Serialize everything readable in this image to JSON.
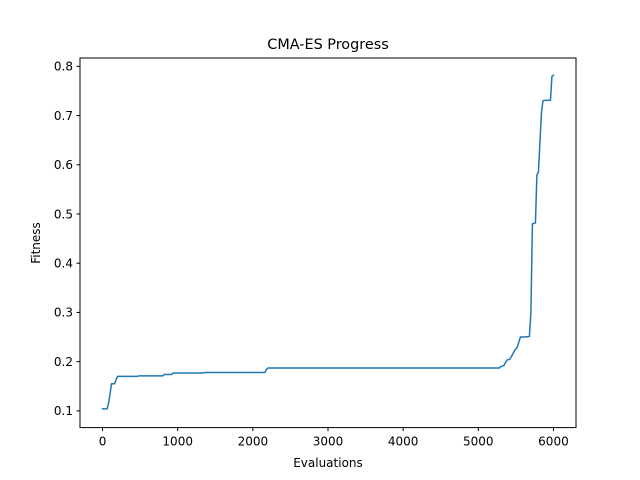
{
  "chart_data": {
    "type": "line",
    "title": "CMA-ES Progress",
    "xlabel": "Evaluations",
    "ylabel": "Fitness",
    "xlim": [
      -300,
      6300
    ],
    "ylim": [
      0.066,
      0.817
    ],
    "xticks": [
      0,
      1000,
      2000,
      3000,
      4000,
      5000,
      6000
    ],
    "yticks": [
      0.1,
      0.2,
      0.3,
      0.4,
      0.5,
      0.6,
      0.7,
      0.8
    ],
    "xtick_labels": [
      "0",
      "1000",
      "2000",
      "3000",
      "4000",
      "5000",
      "6000"
    ],
    "ytick_labels": [
      "0.1",
      "0.2",
      "0.3",
      "0.4",
      "0.5",
      "0.6",
      "0.7",
      "0.8"
    ],
    "grid": false,
    "line_color": "#1f77b4",
    "series": [
      {
        "x": [
          0,
          60,
          80,
          100,
          120,
          160,
          180,
          200,
          460,
          480,
          800,
          820,
          920,
          940,
          1340,
          1360,
          2160,
          2180,
          2200,
          5280,
          5300,
          5340,
          5380,
          5420,
          5450,
          5480,
          5520,
          5560,
          5600,
          5620,
          5680,
          5700,
          5720,
          5760,
          5780,
          5800,
          5840,
          5860,
          5880,
          5960,
          5980,
          6000
        ],
        "y": [
          0.104,
          0.104,
          0.115,
          0.135,
          0.155,
          0.155,
          0.163,
          0.17,
          0.17,
          0.171,
          0.171,
          0.174,
          0.174,
          0.177,
          0.177,
          0.178,
          0.178,
          0.184,
          0.187,
          0.187,
          0.19,
          0.192,
          0.203,
          0.205,
          0.213,
          0.222,
          0.23,
          0.25,
          0.25,
          0.25,
          0.251,
          0.3,
          0.48,
          0.482,
          0.58,
          0.585,
          0.705,
          0.73,
          0.731,
          0.731,
          0.78,
          0.782
        ]
      }
    ]
  }
}
